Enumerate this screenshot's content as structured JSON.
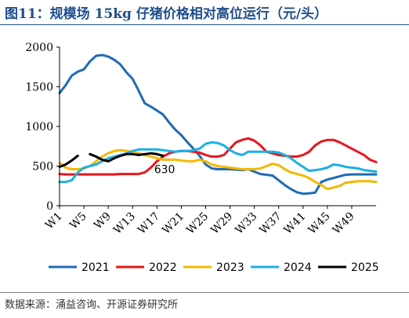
{
  "figure": {
    "title": "图11：规模场 15kg 仔猪价格相对高位运行（元/头）",
    "source": "数据来源：涌益咨询、开源证券研究所"
  },
  "chart_data": {
    "type": "line",
    "title": "",
    "xlabel": "",
    "ylabel": "",
    "ylim": [
      0,
      2000
    ],
    "xlim": [
      1,
      53
    ],
    "yticks": [
      0,
      500,
      1000,
      1500,
      2000
    ],
    "xticks": [
      "W1",
      "W5",
      "W9",
      "W13",
      "W17",
      "W21",
      "W25",
      "W29",
      "W33",
      "W37",
      "W41",
      "W45",
      "W49"
    ],
    "grid": false,
    "legend": "bottom",
    "annotations": [
      {
        "text": "630",
        "x": 18,
        "y": 630
      }
    ],
    "series": [
      {
        "name": "2021",
        "color": "#1f6bb5",
        "points": [
          [
            1,
            1420
          ],
          [
            2,
            1520
          ],
          [
            3,
            1640
          ],
          [
            4,
            1690
          ],
          [
            5,
            1720
          ],
          [
            6,
            1820
          ],
          [
            7,
            1890
          ],
          [
            8,
            1900
          ],
          [
            9,
            1880
          ],
          [
            10,
            1840
          ],
          [
            11,
            1780
          ],
          [
            12,
            1680
          ],
          [
            13,
            1600
          ],
          [
            14,
            1450
          ],
          [
            15,
            1290
          ],
          [
            16,
            1250
          ],
          [
            17,
            1200
          ],
          [
            18,
            1150
          ],
          [
            19,
            1050
          ],
          [
            20,
            960
          ],
          [
            21,
            890
          ],
          [
            22,
            800
          ],
          [
            23,
            720
          ],
          [
            24,
            630
          ],
          [
            25,
            520
          ],
          [
            26,
            470
          ],
          [
            27,
            460
          ],
          [
            28,
            460
          ],
          [
            29,
            460
          ],
          [
            30,
            455
          ],
          [
            31,
            450
          ],
          [
            32,
            460
          ],
          [
            33,
            430
          ],
          [
            34,
            400
          ],
          [
            35,
            390
          ],
          [
            36,
            380
          ],
          [
            37,
            320
          ],
          [
            38,
            260
          ],
          [
            39,
            210
          ],
          [
            40,
            170
          ],
          [
            41,
            150
          ],
          [
            42,
            155
          ],
          [
            43,
            165
          ],
          [
            44,
            300
          ],
          [
            45,
            330
          ],
          [
            46,
            350
          ],
          [
            47,
            370
          ],
          [
            48,
            390
          ],
          [
            49,
            395
          ],
          [
            50,
            395
          ],
          [
            51,
            395
          ],
          [
            52,
            395
          ],
          [
            53,
            395
          ]
        ]
      },
      {
        "name": "2022",
        "color": "#e8161b",
        "points": [
          [
            1,
            400
          ],
          [
            2,
            395
          ],
          [
            3,
            395
          ],
          [
            4,
            395
          ],
          [
            5,
            395
          ],
          [
            6,
            395
          ],
          [
            7,
            395
          ],
          [
            8,
            395
          ],
          [
            9,
            395
          ],
          [
            10,
            395
          ],
          [
            11,
            400
          ],
          [
            12,
            400
          ],
          [
            13,
            400
          ],
          [
            14,
            400
          ],
          [
            15,
            420
          ],
          [
            16,
            480
          ],
          [
            17,
            560
          ],
          [
            18,
            620
          ],
          [
            19,
            660
          ],
          [
            20,
            680
          ],
          [
            21,
            690
          ],
          [
            22,
            690
          ],
          [
            23,
            680
          ],
          [
            24,
            670
          ],
          [
            25,
            640
          ],
          [
            26,
            620
          ],
          [
            27,
            620
          ],
          [
            28,
            640
          ],
          [
            29,
            720
          ],
          [
            30,
            800
          ],
          [
            31,
            830
          ],
          [
            32,
            850
          ],
          [
            33,
            820
          ],
          [
            34,
            760
          ],
          [
            35,
            680
          ],
          [
            36,
            660
          ],
          [
            37,
            640
          ],
          [
            38,
            630
          ],
          [
            39,
            620
          ],
          [
            40,
            620
          ],
          [
            41,
            640
          ],
          [
            42,
            680
          ],
          [
            43,
            760
          ],
          [
            44,
            810
          ],
          [
            45,
            830
          ],
          [
            46,
            830
          ],
          [
            47,
            800
          ],
          [
            48,
            760
          ],
          [
            49,
            720
          ],
          [
            50,
            680
          ],
          [
            51,
            640
          ],
          [
            52,
            580
          ],
          [
            53,
            550
          ]
        ]
      },
      {
        "name": "2023",
        "color": "#f5b800",
        "points": [
          [
            1,
            540
          ],
          [
            2,
            480
          ],
          [
            3,
            460
          ],
          [
            4,
            460
          ],
          [
            5,
            470
          ],
          [
            6,
            500
          ],
          [
            7,
            560
          ],
          [
            8,
            620
          ],
          [
            9,
            660
          ],
          [
            10,
            690
          ],
          [
            11,
            700
          ],
          [
            12,
            690
          ],
          [
            13,
            680
          ],
          [
            14,
            660
          ],
          [
            15,
            640
          ],
          [
            16,
            620
          ],
          [
            17,
            600
          ],
          [
            18,
            580
          ],
          [
            19,
            580
          ],
          [
            20,
            580
          ],
          [
            21,
            570
          ],
          [
            22,
            560
          ],
          [
            23,
            560
          ],
          [
            24,
            580
          ],
          [
            25,
            560
          ],
          [
            26,
            520
          ],
          [
            27,
            500
          ],
          [
            28,
            490
          ],
          [
            29,
            480
          ],
          [
            30,
            470
          ],
          [
            31,
            460
          ],
          [
            32,
            460
          ],
          [
            33,
            460
          ],
          [
            34,
            470
          ],
          [
            35,
            500
          ],
          [
            36,
            530
          ],
          [
            37,
            510
          ],
          [
            38,
            460
          ],
          [
            39,
            420
          ],
          [
            40,
            400
          ],
          [
            41,
            380
          ],
          [
            42,
            350
          ],
          [
            43,
            300
          ],
          [
            44,
            260
          ],
          [
            45,
            210
          ],
          [
            46,
            230
          ],
          [
            47,
            250
          ],
          [
            48,
            290
          ],
          [
            49,
            300
          ],
          [
            50,
            310
          ],
          [
            51,
            310
          ],
          [
            52,
            310
          ],
          [
            53,
            300
          ]
        ]
      },
      {
        "name": "2024",
        "color": "#1cb0e4",
        "points": [
          [
            1,
            300
          ],
          [
            2,
            300
          ],
          [
            3,
            320
          ],
          [
            4,
            420
          ],
          [
            5,
            480
          ],
          [
            6,
            500
          ],
          [
            7,
            520
          ],
          [
            8,
            560
          ],
          [
            9,
            600
          ],
          [
            10,
            620
          ],
          [
            11,
            640
          ],
          [
            12,
            660
          ],
          [
            13,
            690
          ],
          [
            14,
            710
          ],
          [
            15,
            710
          ],
          [
            16,
            710
          ],
          [
            17,
            710
          ],
          [
            18,
            700
          ],
          [
            19,
            690
          ],
          [
            20,
            680
          ],
          [
            21,
            690
          ],
          [
            22,
            690
          ],
          [
            23,
            700
          ],
          [
            24,
            720
          ],
          [
            25,
            780
          ],
          [
            26,
            800
          ],
          [
            27,
            790
          ],
          [
            28,
            760
          ],
          [
            29,
            700
          ],
          [
            30,
            660
          ],
          [
            31,
            640
          ],
          [
            32,
            680
          ],
          [
            33,
            680
          ],
          [
            34,
            680
          ],
          [
            35,
            680
          ],
          [
            36,
            680
          ],
          [
            37,
            670
          ],
          [
            38,
            640
          ],
          [
            39,
            600
          ],
          [
            40,
            540
          ],
          [
            41,
            490
          ],
          [
            42,
            440
          ],
          [
            43,
            450
          ],
          [
            44,
            460
          ],
          [
            45,
            480
          ],
          [
            46,
            520
          ],
          [
            47,
            510
          ],
          [
            48,
            490
          ],
          [
            49,
            480
          ],
          [
            50,
            470
          ],
          [
            51,
            450
          ],
          [
            52,
            440
          ],
          [
            53,
            430
          ]
        ]
      },
      {
        "name": "2025",
        "color": "#000000",
        "points": [
          [
            1,
            490
          ],
          [
            2,
            520
          ],
          [
            3,
            570
          ],
          [
            4,
            630
          ],
          null,
          [
            6,
            650
          ],
          [
            7,
            620
          ],
          [
            8,
            580
          ],
          [
            9,
            560
          ],
          [
            10,
            600
          ],
          [
            11,
            630
          ],
          [
            12,
            650
          ],
          [
            13,
            650
          ],
          [
            14,
            640
          ],
          [
            15,
            650
          ],
          [
            16,
            660
          ],
          [
            17,
            650
          ],
          [
            18,
            630
          ]
        ]
      }
    ]
  }
}
